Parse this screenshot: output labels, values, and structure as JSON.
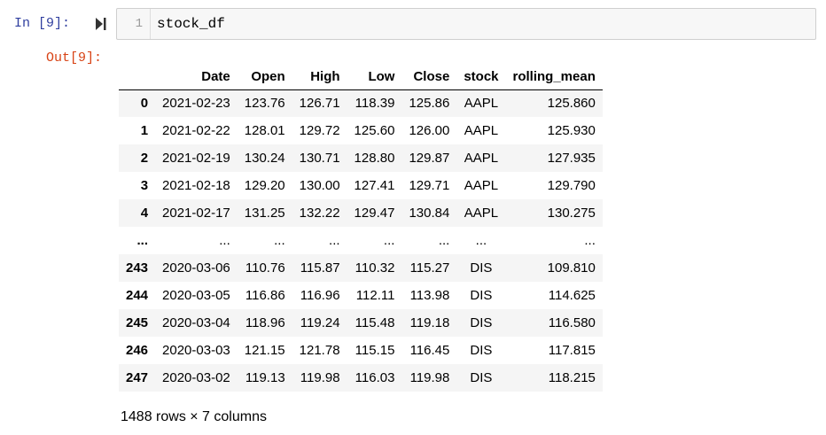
{
  "input_cell": {
    "prompt": "In [9]:",
    "line_number": "1",
    "code": "stock_df"
  },
  "output_cell": {
    "prompt": "Out[9]:"
  },
  "table": {
    "columns": [
      "",
      "Date",
      "Open",
      "High",
      "Low",
      "Close",
      "stock",
      "rolling_mean"
    ],
    "rows": [
      [
        "0",
        "2021-02-23",
        "123.76",
        "126.71",
        "118.39",
        "125.86",
        "AAPL",
        "125.860"
      ],
      [
        "1",
        "2021-02-22",
        "128.01",
        "129.72",
        "125.60",
        "126.00",
        "AAPL",
        "125.930"
      ],
      [
        "2",
        "2021-02-19",
        "130.24",
        "130.71",
        "128.80",
        "129.87",
        "AAPL",
        "127.935"
      ],
      [
        "3",
        "2021-02-18",
        "129.20",
        "130.00",
        "127.41",
        "129.71",
        "AAPL",
        "129.790"
      ],
      [
        "4",
        "2021-02-17",
        "131.25",
        "132.22",
        "129.47",
        "130.84",
        "AAPL",
        "130.275"
      ],
      [
        "...",
        "...",
        "...",
        "...",
        "...",
        "...",
        "...",
        "..."
      ],
      [
        "243",
        "2020-03-06",
        "110.76",
        "115.87",
        "110.32",
        "115.27",
        "DIS",
        "109.810"
      ],
      [
        "244",
        "2020-03-05",
        "116.86",
        "116.96",
        "112.11",
        "113.98",
        "DIS",
        "114.625"
      ],
      [
        "245",
        "2020-03-04",
        "118.96",
        "119.24",
        "115.48",
        "119.18",
        "DIS",
        "116.580"
      ],
      [
        "246",
        "2020-03-03",
        "121.15",
        "121.78",
        "115.15",
        "116.45",
        "DIS",
        "117.815"
      ],
      [
        "247",
        "2020-03-02",
        "119.13",
        "119.98",
        "116.03",
        "119.98",
        "DIS",
        "118.215"
      ]
    ]
  },
  "footer": "1488 rows × 7 columns",
  "icons": {
    "run": "run-cell-icon"
  },
  "colors": {
    "in_prompt": "#303f9f",
    "out_prompt": "#d84315",
    "input_bg": "#f7f7f7",
    "row_stripe": "#f5f5f5"
  }
}
